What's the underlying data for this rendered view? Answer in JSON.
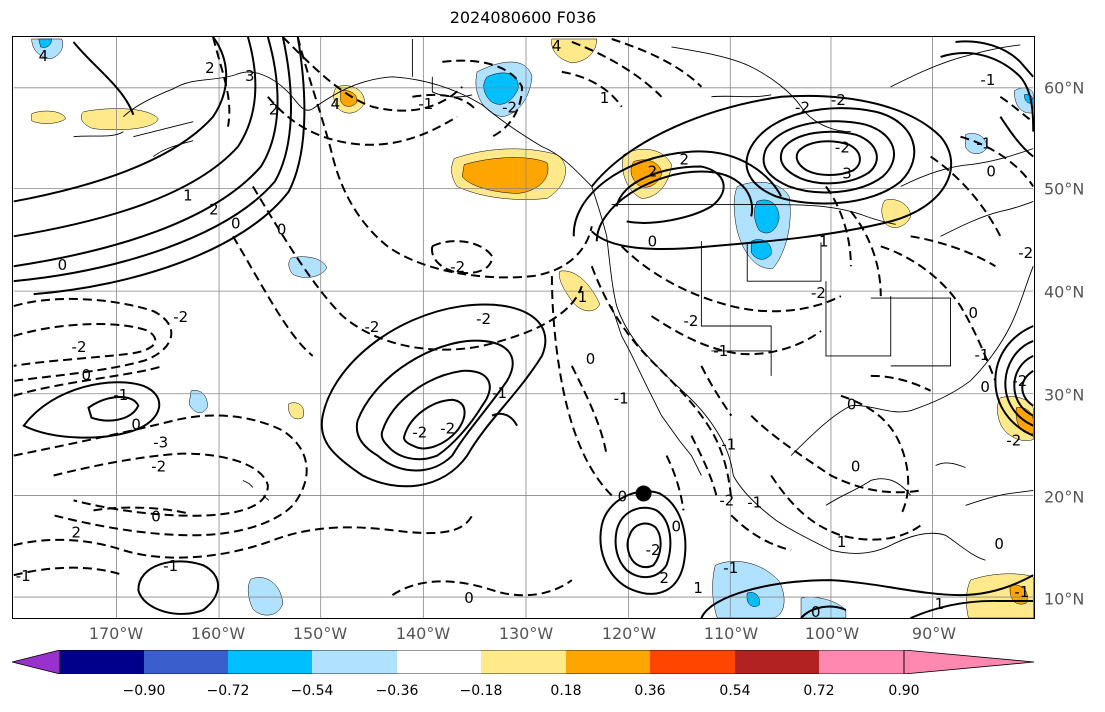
{
  "title": "2024080600 F036",
  "lon_ticks": [
    "170°W",
    "160°W",
    "150°W",
    "140°W",
    "130°W",
    "120°W",
    "110°W",
    "100°W",
    "90°W"
  ],
  "lat_ticks": [
    "60°N",
    "50°N",
    "40°N",
    "30°N",
    "20°N",
    "10°N"
  ],
  "colorbar": {
    "labels": [
      "−0.90",
      "−0.72",
      "−0.54",
      "−0.36",
      "−0.18",
      "0.18",
      "0.36",
      "0.54",
      "0.72",
      "0.90"
    ],
    "colors": [
      "#9932cc",
      "#00008b",
      "#3a5fcd",
      "#00bfff",
      "#b0e2ff",
      "#ffffff",
      "#ffe98a",
      "#ffa500",
      "#ff4500",
      "#b22222",
      "#ff88b0"
    ]
  },
  "shading_colors": {
    "light_blue": "#b0e2ff",
    "blue": "#00bfff",
    "light_yellow": "#ffe98a",
    "orange": "#ffa500"
  },
  "contour_labels": [
    "4",
    "4",
    "2",
    "3",
    "4",
    "2",
    "1",
    "-1",
    "-2",
    "-2",
    "0",
    "2",
    "0",
    "1",
    "-2",
    "-2",
    "0",
    "-1",
    "0",
    "-3",
    "-2",
    "0",
    "2",
    "-1",
    "-1",
    "-2",
    "-2",
    "-1",
    "-2",
    "-2",
    "0",
    "1",
    "0",
    "0",
    "-1",
    "-2",
    "-1",
    "-1",
    "-2",
    "-2",
    "0",
    "1",
    "-2",
    "-2",
    "-3",
    "-2",
    "-1",
    "-1",
    "2",
    "2",
    "0",
    "-2",
    "0",
    "-1",
    "0",
    "-2",
    "-2",
    "0",
    "1",
    "-1",
    "1",
    "-1",
    "0",
    "0",
    "0",
    "-2",
    "2",
    "1",
    "-1",
    "0",
    "0"
  ]
}
